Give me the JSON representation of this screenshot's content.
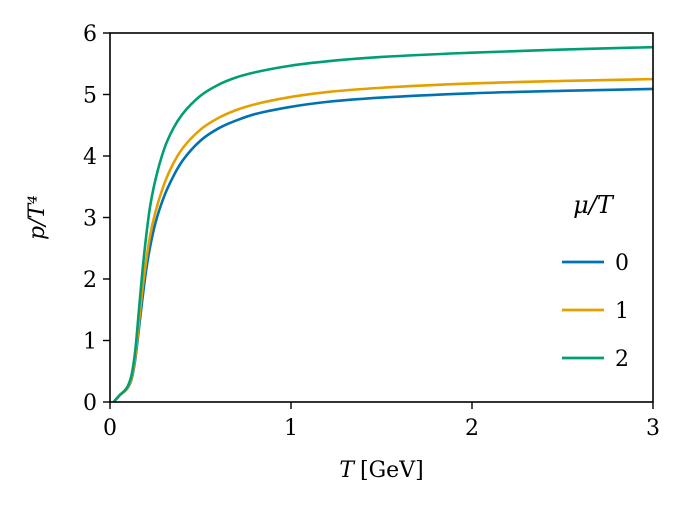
{
  "chart_data": {
    "type": "line",
    "xlabel_var": "T",
    "xlabel_unit": "[GeV]",
    "ylabel": "p/T⁴",
    "xlim": [
      0,
      3
    ],
    "ylim": [
      0,
      6
    ],
    "xticks": [
      0,
      1,
      2,
      3
    ],
    "yticks": [
      0,
      1,
      2,
      3,
      4,
      5,
      6
    ],
    "grid": false,
    "legend": {
      "title": "μ/T",
      "placement": "right"
    },
    "series": [
      {
        "name": "0",
        "color": "#0072b2",
        "x": [
          0.02,
          0.05,
          0.1,
          0.12,
          0.14,
          0.16,
          0.18,
          0.2,
          0.22,
          0.25,
          0.3,
          0.35,
          0.4,
          0.5,
          0.6,
          0.7,
          0.8,
          1.0,
          1.2,
          1.5,
          2.0,
          2.5,
          3.0
        ],
        "y": [
          0.0,
          0.1,
          0.24,
          0.38,
          0.7,
          1.2,
          1.7,
          2.15,
          2.5,
          2.9,
          3.35,
          3.67,
          3.92,
          4.25,
          4.45,
          4.58,
          4.68,
          4.8,
          4.88,
          4.95,
          5.02,
          5.06,
          5.09
        ]
      },
      {
        "name": "1",
        "color": "#e69f00",
        "x": [
          0.02,
          0.05,
          0.1,
          0.12,
          0.14,
          0.16,
          0.18,
          0.2,
          0.22,
          0.25,
          0.3,
          0.35,
          0.4,
          0.5,
          0.6,
          0.7,
          0.8,
          1.0,
          1.2,
          1.5,
          2.0,
          2.5,
          3.0
        ],
        "y": [
          0.0,
          0.1,
          0.25,
          0.4,
          0.75,
          1.3,
          1.85,
          2.3,
          2.68,
          3.08,
          3.55,
          3.88,
          4.12,
          4.43,
          4.62,
          4.75,
          4.84,
          4.96,
          5.04,
          5.11,
          5.18,
          5.22,
          5.25
        ]
      },
      {
        "name": "2",
        "color": "#009e73",
        "x": [
          0.02,
          0.05,
          0.1,
          0.12,
          0.14,
          0.16,
          0.18,
          0.2,
          0.22,
          0.25,
          0.3,
          0.35,
          0.4,
          0.5,
          0.6,
          0.7,
          0.8,
          1.0,
          1.2,
          1.5,
          2.0,
          2.5,
          3.0
        ],
        "y": [
          0.0,
          0.1,
          0.27,
          0.45,
          0.85,
          1.5,
          2.15,
          2.7,
          3.15,
          3.6,
          4.12,
          4.45,
          4.68,
          4.98,
          5.16,
          5.28,
          5.36,
          5.47,
          5.54,
          5.61,
          5.68,
          5.73,
          5.77
        ]
      }
    ]
  }
}
